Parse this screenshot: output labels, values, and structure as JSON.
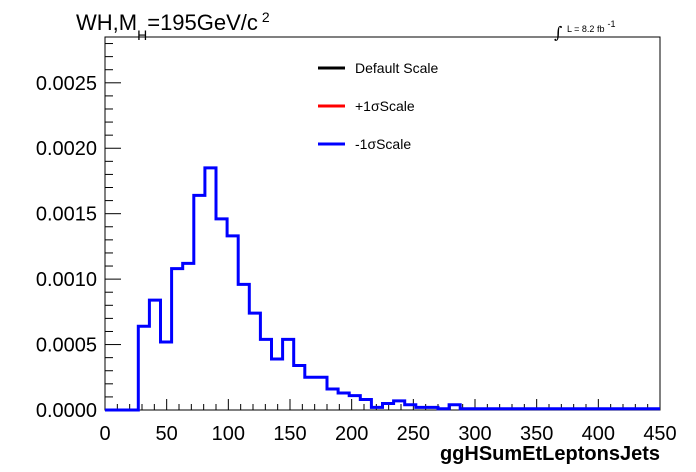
{
  "title": {
    "prefix": "WH,M",
    "subscript": "H",
    "main": "=195GeV/c",
    "superscript": "2"
  },
  "luminosity": {
    "integral_symbol": "∫",
    "text": "L = 8.2 fb",
    "superscript": "-1"
  },
  "chart_data": {
    "type": "line",
    "xlabel": "ggHSumEtLeptonsJets",
    "ylabel": "",
    "xlim": [
      0,
      450
    ],
    "ylim": [
      0,
      0.00285
    ],
    "x_ticks": [
      "0",
      "50",
      "100",
      "150",
      "200",
      "250",
      "300",
      "350",
      "400",
      "450"
    ],
    "y_ticks": [
      "0.0000",
      "0.0005",
      "0.0010",
      "0.0015",
      "0.0020",
      "0.0025"
    ],
    "bin_width": 9,
    "bin_edges_start": 0,
    "grid": false,
    "legend_position": "top-center",
    "series": [
      {
        "name": "Default Scale",
        "color": "#000000"
      },
      {
        "name": "+1σScale",
        "color": "#ff0000"
      },
      {
        "name": "-1σScale",
        "color": "#0000ff",
        "values": [
          0,
          0,
          0,
          0.00064,
          0.00084,
          0.00052,
          0.00108,
          0.00112,
          0.00164,
          0.00185,
          0.00146,
          0.00133,
          0.00096,
          0.00074,
          0.00054,
          0.00039,
          0.00054,
          0.00034,
          0.00025,
          0.00025,
          0.00016,
          0.00013,
          0.00011,
          8e-05,
          2e-05,
          5e-05,
          7e-05,
          4e-05,
          2e-05,
          2e-05,
          1e-05,
          4e-05,
          1e-05,
          1e-05,
          1e-05,
          1e-05,
          1e-05,
          1e-05,
          1e-05,
          1e-05,
          1e-05,
          1e-05,
          1e-05,
          1e-05,
          1e-05,
          1e-05,
          1e-05,
          1e-05,
          1e-05,
          1e-05
        ]
      }
    ]
  }
}
